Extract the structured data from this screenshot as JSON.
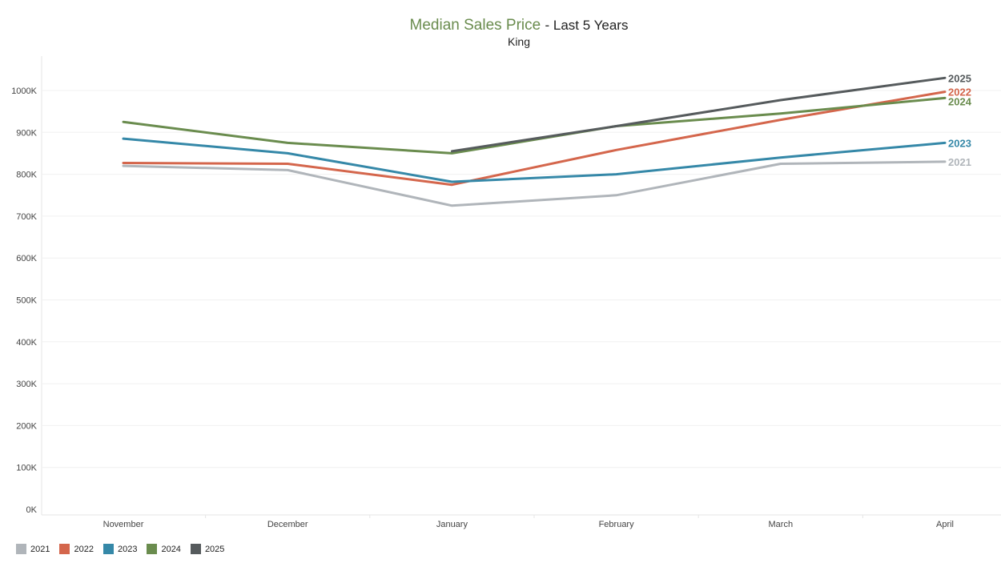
{
  "title": {
    "accent": "Median Sales Price",
    "rest": "- Last 5 Years",
    "subtitle": "King"
  },
  "chart_data": {
    "type": "line",
    "title": "Median Sales Price - Last 5 Years",
    "subtitle": "King",
    "categories": [
      "November",
      "December",
      "January",
      "February",
      "March",
      "April"
    ],
    "ylim": [
      0,
      1000000
    ],
    "yticks": [
      {
        "value": 0,
        "label": "0K"
      },
      {
        "value": 100000,
        "label": "100K"
      },
      {
        "value": 200000,
        "label": "200K"
      },
      {
        "value": 300000,
        "label": "300K"
      },
      {
        "value": 400000,
        "label": "400K"
      },
      {
        "value": 500000,
        "label": "500K"
      },
      {
        "value": 600000,
        "label": "600K"
      },
      {
        "value": 700000,
        "label": "700K"
      },
      {
        "value": 800000,
        "label": "800K"
      },
      {
        "value": 900000,
        "label": "900K"
      },
      {
        "value": 1000000,
        "label": "1000K"
      }
    ],
    "grid": true,
    "legend_position": "bottom-left",
    "series": [
      {
        "name": "2021",
        "color": "#b0b5ba",
        "values": [
          820000,
          810000,
          725000,
          750000,
          825000,
          830000
        ]
      },
      {
        "name": "2022",
        "color": "#d4664c",
        "values": [
          827000,
          825000,
          775000,
          858000,
          930000,
          997000
        ]
      },
      {
        "name": "2023",
        "color": "#3588a8",
        "values": [
          885000,
          850000,
          782000,
          800000,
          840000,
          875000
        ]
      },
      {
        "name": "2024",
        "color": "#6a8c4e",
        "values": [
          925000,
          875000,
          850000,
          915000,
          945000,
          982000
        ]
      },
      {
        "name": "2025",
        "color": "#565b5d",
        "values": [
          null,
          null,
          855000,
          915000,
          977000,
          1030000
        ]
      }
    ]
  }
}
